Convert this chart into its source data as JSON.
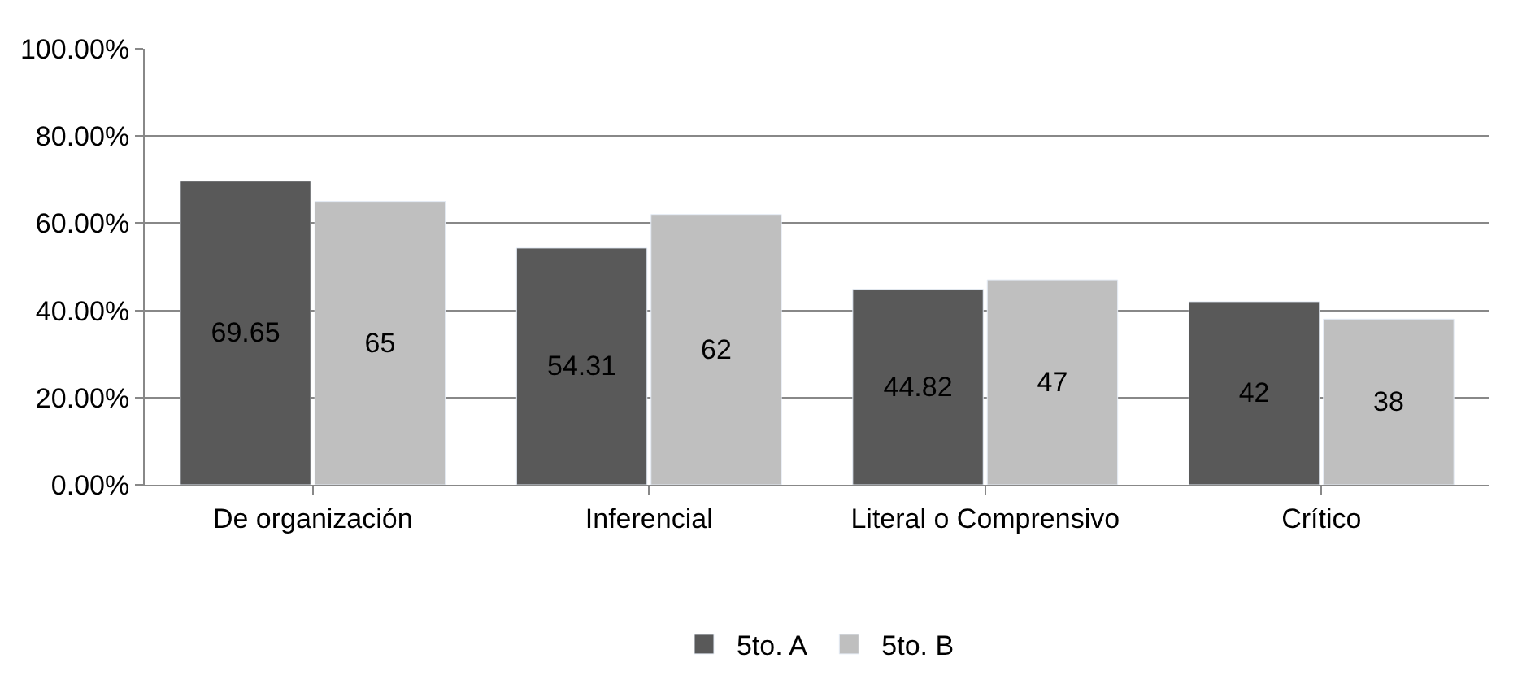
{
  "chart_data": {
    "type": "bar",
    "categories": [
      "De organización",
      "Inferencial",
      "Literal o Comprensivo",
      "Crítico"
    ],
    "series": [
      {
        "name": "5to. A",
        "color": "#595959",
        "values": [
          69.65,
          54.31,
          44.82,
          42
        ]
      },
      {
        "name": "5to. B",
        "color": "#bfbfbf",
        "values": [
          65,
          62,
          47,
          38
        ]
      }
    ],
    "ylim": [
      0,
      100
    ],
    "yticks": [
      {
        "value": 0,
        "label": "0.00%"
      },
      {
        "value": 20,
        "label": "20.00%"
      },
      {
        "value": 40,
        "label": "40.00%"
      },
      {
        "value": 60,
        "label": "60.00%"
      },
      {
        "value": 80,
        "label": "80.00%"
      },
      {
        "value": 100,
        "label": "100.00%"
      }
    ],
    "grid": "y",
    "legend": "bottom",
    "data_labels": true
  }
}
